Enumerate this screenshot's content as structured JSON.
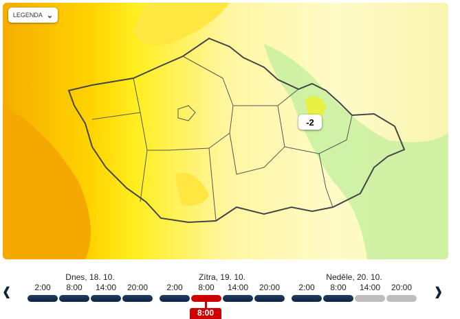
{
  "legend": {
    "label": "LEGENDA",
    "icon": "chevron-down-icon"
  },
  "map": {
    "value_label": "-2",
    "colors": {
      "orange": "#f5a800",
      "yellow": "#ffe600",
      "pale": "#fffbc8",
      "green": "#c8f0a0",
      "border": "#444444"
    }
  },
  "timeline": {
    "days": [
      {
        "label": "Dnes, 18. 10."
      },
      {
        "label": "Zítra, 19. 10."
      },
      {
        "label": "Neděle, 20. 10."
      }
    ],
    "slots": [
      {
        "time": "2:00",
        "state": "available"
      },
      {
        "time": "8:00",
        "state": "available"
      },
      {
        "time": "14:00",
        "state": "available"
      },
      {
        "time": "20:00",
        "state": "available"
      },
      {
        "time": "2:00",
        "state": "available"
      },
      {
        "time": "8:00",
        "state": "selected"
      },
      {
        "time": "14:00",
        "state": "available"
      },
      {
        "time": "20:00",
        "state": "available"
      },
      {
        "time": "2:00",
        "state": "available"
      },
      {
        "time": "8:00",
        "state": "available"
      },
      {
        "time": "14:00",
        "state": "unavailable"
      },
      {
        "time": "20:00",
        "state": "unavailable"
      }
    ],
    "selected_label": "8:00",
    "prev_icon": "chevron-left-icon",
    "next_icon": "chevron-right-icon"
  }
}
